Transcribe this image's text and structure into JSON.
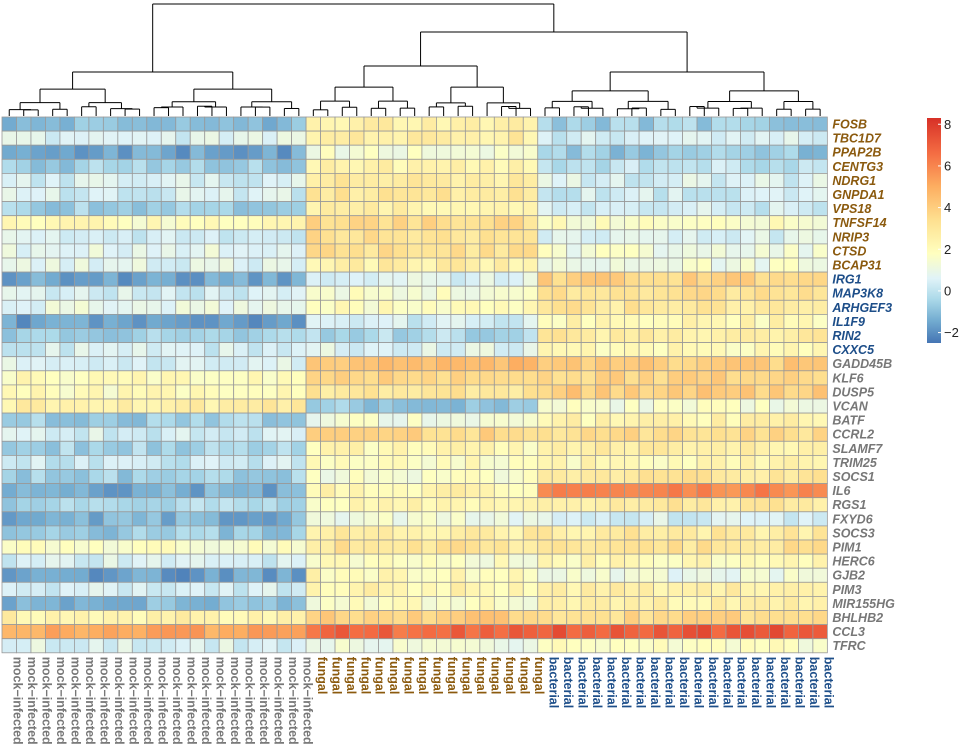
{
  "chart_data": {
    "type": "heatmap",
    "title": "",
    "legend": {
      "position": "right",
      "range": [
        -2.5,
        8.3
      ],
      "ticks": [
        -2,
        0,
        2,
        4,
        6,
        8
      ],
      "tick_labels": [
        "−2",
        "0",
        "2",
        "4",
        "6",
        "8"
      ]
    },
    "colors": {
      "scale": [
        "#4575b4",
        "#74add1",
        "#abd9e9",
        "#e0f3f8",
        "#ffffbf",
        "#fee090",
        "#fdae61",
        "#f46d43",
        "#d73027"
      ],
      "group_mock": "#777777",
      "group_fungal": "#8b5a0e",
      "group_bacterial": "#1d4e89",
      "dendrogram": "#000000",
      "cell_border": "#999999"
    },
    "column_groups": [
      {
        "name": "mock−infected",
        "count": 21,
        "color_key": "group_mock"
      },
      {
        "name": "fungal",
        "count": 16,
        "color_key": "group_fungal"
      },
      {
        "name": "bacterial",
        "count": 20,
        "color_key": "group_bacterial"
      }
    ],
    "dendrogram_split_order": [
      "mock−infected",
      "fungal",
      "bacterial"
    ],
    "genes": [
      {
        "name": "FOSB",
        "group": "fungal",
        "mock": -1.0,
        "fungal": 2.7,
        "bacterial": -0.6
      },
      {
        "name": "TBC1D7",
        "group": "fungal",
        "mock": 0.6,
        "fungal": 2.7,
        "bacterial": 0.4
      },
      {
        "name": "PPAP2B",
        "group": "fungal",
        "mock": -1.6,
        "fungal": 1.4,
        "bacterial": -0.8
      },
      {
        "name": "CENTG3",
        "group": "fungal",
        "mock": -0.6,
        "fungal": 2.4,
        "bacterial": 0.0
      },
      {
        "name": "NDRG1",
        "group": "fungal",
        "mock": 0.4,
        "fungal": 2.8,
        "bacterial": 0.5
      },
      {
        "name": "GNPDA1",
        "group": "fungal",
        "mock": 0.4,
        "fungal": 3.1,
        "bacterial": 0.3
      },
      {
        "name": "VPS18",
        "group": "fungal",
        "mock": -0.6,
        "fungal": 2.6,
        "bacterial": 0.3
      },
      {
        "name": "TNFSF14",
        "group": "fungal",
        "mock": 1.9,
        "fungal": 3.5,
        "bacterial": 1.7
      },
      {
        "name": "NRIP3",
        "group": "fungal",
        "mock": 0.4,
        "fungal": 3.3,
        "bacterial": 0.6
      },
      {
        "name": "CTSD",
        "group": "fungal",
        "mock": 0.9,
        "fungal": 3.2,
        "bacterial": 1.3
      },
      {
        "name": "BCAP31",
        "group": "fungal",
        "mock": 0.7,
        "fungal": 2.6,
        "bacterial": 1.3
      },
      {
        "name": "IRG1",
        "group": "bacterial",
        "mock": -1.6,
        "fungal": 0.6,
        "bacterial": 3.8
      },
      {
        "name": "MAP3K8",
        "group": "bacterial",
        "mock": 0.4,
        "fungal": 1.5,
        "bacterial": 3.3
      },
      {
        "name": "ARHGEF3",
        "group": "bacterial",
        "mock": 0.9,
        "fungal": 1.8,
        "bacterial": 3.0
      },
      {
        "name": "IL1F9",
        "group": "bacterial",
        "mock": -1.6,
        "fungal": 0.4,
        "bacterial": 2.2
      },
      {
        "name": "RIN2",
        "group": "bacterial",
        "mock": -0.6,
        "fungal": -0.3,
        "bacterial": 2.8
      },
      {
        "name": "CXXC5",
        "group": "bacterial",
        "mock": 0.4,
        "fungal": 0.7,
        "bacterial": 2.0
      },
      {
        "name": "GADD45B",
        "group": "other",
        "mock": 0.5,
        "fungal": 4.5,
        "bacterial": 4.0
      },
      {
        "name": "KLF6",
        "group": "other",
        "mock": 1.9,
        "fungal": 3.9,
        "bacterial": 3.7
      },
      {
        "name": "DUSP5",
        "group": "other",
        "mock": 1.9,
        "fungal": 3.1,
        "bacterial": 4.0
      },
      {
        "name": "VCAN",
        "group": "other",
        "mock": 2.6,
        "fungal": -0.8,
        "bacterial": 1.4
      },
      {
        "name": "BATF",
        "group": "other",
        "mock": -0.6,
        "fungal": 1.3,
        "bacterial": 2.3
      },
      {
        "name": "CCRL2",
        "group": "other",
        "mock": 0.4,
        "fungal": 3.6,
        "bacterial": 3.5
      },
      {
        "name": "SLAMF7",
        "group": "other",
        "mock": -0.5,
        "fungal": 2.1,
        "bacterial": 2.7
      },
      {
        "name": "TRIM25",
        "group": "other",
        "mock": 0.2,
        "fungal": 1.9,
        "bacterial": 2.1
      },
      {
        "name": "SOCS1",
        "group": "other",
        "mock": -0.6,
        "fungal": 1.5,
        "bacterial": 3.0
      },
      {
        "name": "IL6",
        "group": "other",
        "mock": -1.4,
        "fungal": 2.3,
        "bacterial": 5.9
      },
      {
        "name": "RGS1",
        "group": "other",
        "mock": -0.4,
        "fungal": 2.1,
        "bacterial": 2.9
      },
      {
        "name": "FXYD6",
        "group": "other",
        "mock": -1.3,
        "fungal": 1.2,
        "bacterial": 0.4
      },
      {
        "name": "SOCS3",
        "group": "other",
        "mock": -0.7,
        "fungal": 2.6,
        "bacterial": 2.8
      },
      {
        "name": "PIM1",
        "group": "other",
        "mock": 1.5,
        "fungal": 3.1,
        "bacterial": 3.3
      },
      {
        "name": "HERC6",
        "group": "other",
        "mock": 0.5,
        "fungal": 1.7,
        "bacterial": 2.1
      },
      {
        "name": "GJB2",
        "group": "other",
        "mock": -1.7,
        "fungal": 2.1,
        "bacterial": 1.1
      },
      {
        "name": "PIM3",
        "group": "other",
        "mock": 0.3,
        "fungal": 2.3,
        "bacterial": 2.7
      },
      {
        "name": "MIR155HG",
        "group": "other",
        "mock": -1.1,
        "fungal": 1.7,
        "bacterial": 2.4
      },
      {
        "name": "BHLHB2",
        "group": "other",
        "mock": 2.4,
        "fungal": 3.9,
        "bacterial": 3.6
      },
      {
        "name": "CCL3",
        "group": "other",
        "mock": 5.2,
        "fungal": 6.7,
        "bacterial": 7.1
      },
      {
        "name": "TFRC",
        "group": "other",
        "mock": 0.6,
        "fungal": 1.3,
        "bacterial": 1.6
      }
    ]
  }
}
